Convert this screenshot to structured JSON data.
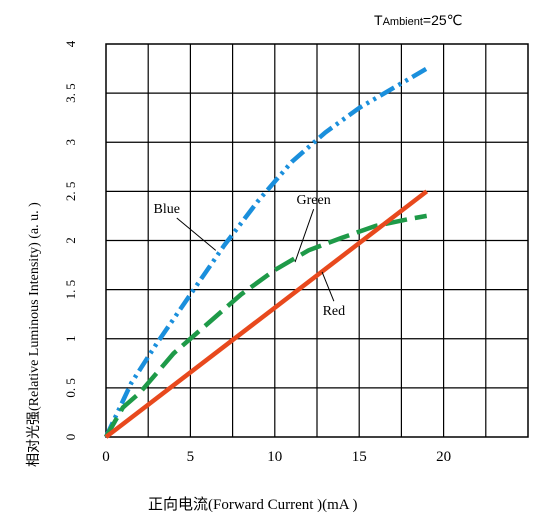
{
  "chart_data": {
    "type": "line",
    "title": "",
    "condition": {
      "prefix": "T",
      "subscript": "Ambient",
      "value": "=25℃"
    },
    "xlabel": "正向电流(Forward  Current )(mA )",
    "ylabel": "相对光强(Relative Luminous  Intensity) (a. u. )",
    "xlim": [
      0,
      25
    ],
    "ylim": [
      0,
      4
    ],
    "xticks": [
      "0",
      "5",
      "10",
      "15",
      "20"
    ],
    "yticks": [
      "0",
      "0. 5",
      "1",
      "1. 5",
      "2",
      "2. 5",
      "3",
      "3. 5",
      "4"
    ],
    "grid": true,
    "series": [
      {
        "name": "Blue",
        "color": "#1a8fdc",
        "style": "dash-dot-dot",
        "x": [
          0,
          1.5,
          3,
          5,
          7,
          9,
          11,
          13,
          15,
          17,
          19
        ],
        "y": [
          0,
          0.55,
          0.95,
          1.45,
          1.95,
          2.4,
          2.8,
          3.1,
          3.35,
          3.55,
          3.75
        ]
      },
      {
        "name": "Green",
        "color": "#1e9a48",
        "style": "long-dash",
        "x": [
          0,
          1,
          2,
          4,
          6,
          8,
          10,
          12,
          14,
          16,
          18,
          19
        ],
        "y": [
          0,
          0.3,
          0.45,
          0.85,
          1.15,
          1.45,
          1.7,
          1.9,
          2.03,
          2.15,
          2.22,
          2.25
        ]
      },
      {
        "name": "Red",
        "color": "#e8491d",
        "style": "solid",
        "x": [
          0,
          19
        ],
        "y": [
          0,
          2.5
        ]
      }
    ],
    "annotations": [
      {
        "series": "Blue",
        "text": "Blue",
        "point_x": 6.5,
        "point_y": 1.9,
        "label_x": 3.6,
        "label_y": 2.28
      },
      {
        "series": "Green",
        "text": "Green",
        "point_x": 11.2,
        "point_y": 1.78,
        "label_x": 12.3,
        "label_y": 2.37
      },
      {
        "series": "Red",
        "text": "Red",
        "point_x": 12.8,
        "point_y": 1.68,
        "label_x": 13.5,
        "label_y": 1.24
      }
    ]
  }
}
